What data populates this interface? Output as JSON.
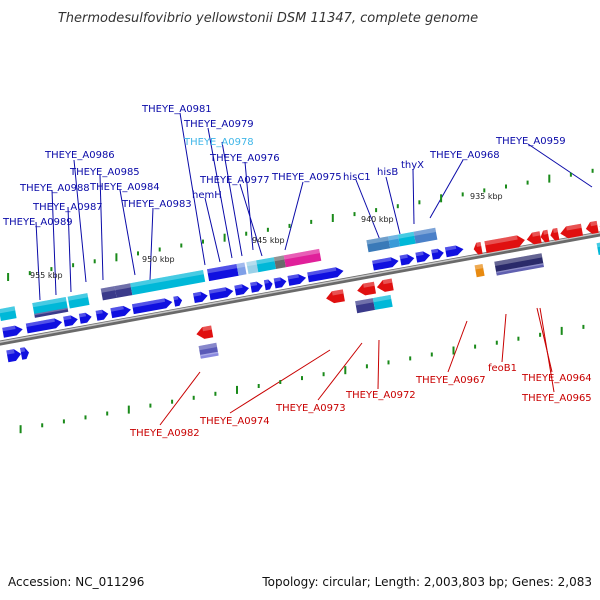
{
  "title": "Thermodesulfovibrio yellowstonii DSM 11347, complete genome",
  "footer": {
    "accession": "Accession: NC_011296",
    "topology": "Topology: circular; Length: 2,003,803 bp; Genes: 2,083"
  },
  "colors": {
    "forward_label": "#0a0aa8",
    "reverse_label": "#c80000",
    "highlight_label": "#3fb6e8",
    "backbone": "#8a8a8a",
    "tick": "#1a8a1a"
  },
  "scale_ticks": [
    "955 kbp",
    "950 kbp",
    "945 kbp",
    "940 kbp",
    "935 kbp"
  ],
  "forward_labels": [
    {
      "name": "THEYE_A0981",
      "color": "forward"
    },
    {
      "name": "THEYE_A0979",
      "color": "forward"
    },
    {
      "name": "THEYE_A0978",
      "color": "highlight"
    },
    {
      "name": "THEYE_A0976",
      "color": "forward"
    },
    {
      "name": "THEYE_A0986",
      "color": "forward"
    },
    {
      "name": "THEYE_A0985",
      "color": "forward"
    },
    {
      "name": "THEYE_A0977",
      "color": "forward"
    },
    {
      "name": "THEYE_A0975",
      "color": "forward"
    },
    {
      "name": "THEYE_A0988",
      "color": "forward"
    },
    {
      "name": "THEYE_A0984",
      "color": "forward"
    },
    {
      "name": "THEYE_A0987",
      "color": "forward"
    },
    {
      "name": "THEYE_A0983",
      "color": "forward"
    },
    {
      "name": "THEYE_A0989",
      "color": "forward"
    },
    {
      "name": "hemH",
      "color": "forward"
    },
    {
      "name": "hisC1",
      "color": "forward"
    },
    {
      "name": "hisB",
      "color": "forward"
    },
    {
      "name": "thyX",
      "color": "forward"
    },
    {
      "name": "THEYE_A0968",
      "color": "forward"
    },
    {
      "name": "THEYE_A0959",
      "color": "forward"
    }
  ],
  "reverse_labels": [
    {
      "name": "THEYE_A0967"
    },
    {
      "name": "feoB1"
    },
    {
      "name": "THEYE_A0964"
    },
    {
      "name": "THEYE_A0965"
    },
    {
      "name": "THEYE_A0973"
    },
    {
      "name": "THEYE_A0972"
    },
    {
      "name": "THEYE_A0974"
    },
    {
      "name": "THEYE_A0982"
    }
  ]
}
